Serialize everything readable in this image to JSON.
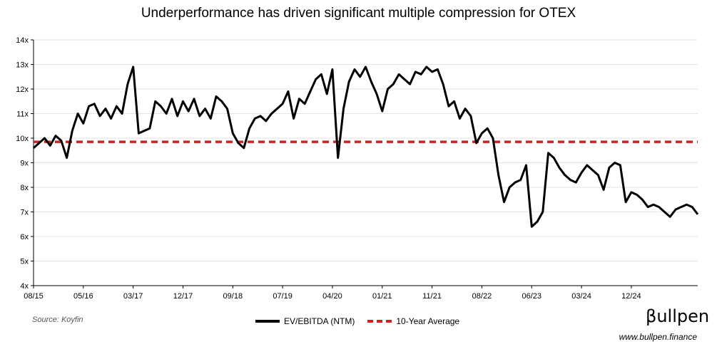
{
  "header": {
    "title": "Underperformance has driven significant multiple compression for OTEX"
  },
  "footer": {
    "source": "Source: Koyfin",
    "brand": "βullpen",
    "url": "www.bullpen.finance"
  },
  "legend": {
    "series_label": "EV/EBITDA (NTM)",
    "average_label": "10-Year Average"
  },
  "colors": {
    "series": "#000000",
    "average": "#d71f1f",
    "grid": "#e3e3e3"
  },
  "chart_data": {
    "type": "line",
    "title": "Underperformance has driven significant multiple compression for OTEX",
    "ylim": [
      4,
      14
    ],
    "y_ticks": [
      "4x",
      "5x",
      "6x",
      "7x",
      "8x",
      "9x",
      "10x",
      "11x",
      "12x",
      "13x",
      "14x"
    ],
    "x_ticks": [
      "08/15",
      "05/16",
      "03/17",
      "12/17",
      "09/18",
      "07/19",
      "04/20",
      "01/21",
      "11/21",
      "08/22",
      "06/23",
      "03/24",
      "12/24"
    ],
    "grid": "horizontal",
    "legend_position": "bottom",
    "x_range": [
      "2015-08",
      "2025-08"
    ],
    "series": [
      {
        "name": "EV/EBITDA (NTM)",
        "x": [
          "2015-08",
          "2015-09",
          "2015-10",
          "2015-11",
          "2015-12",
          "2016-01",
          "2016-02",
          "2016-03",
          "2016-04",
          "2016-05",
          "2016-06",
          "2016-07",
          "2016-08",
          "2016-09",
          "2016-10",
          "2016-11",
          "2016-12",
          "2017-01",
          "2017-02",
          "2017-03",
          "2017-04",
          "2017-05",
          "2017-06",
          "2017-07",
          "2017-08",
          "2017-09",
          "2017-10",
          "2017-11",
          "2017-12",
          "2018-01",
          "2018-02",
          "2018-03",
          "2018-04",
          "2018-05",
          "2018-06",
          "2018-07",
          "2018-08",
          "2018-09",
          "2018-10",
          "2018-11",
          "2018-12",
          "2019-01",
          "2019-02",
          "2019-03",
          "2019-04",
          "2019-05",
          "2019-06",
          "2019-07",
          "2019-08",
          "2019-09",
          "2019-10",
          "2019-11",
          "2019-12",
          "2020-01",
          "2020-02",
          "2020-03",
          "2020-04",
          "2020-05",
          "2020-06",
          "2020-07",
          "2020-08",
          "2020-09",
          "2020-10",
          "2020-11",
          "2020-12",
          "2021-01",
          "2021-02",
          "2021-03",
          "2021-04",
          "2021-05",
          "2021-06",
          "2021-07",
          "2021-08",
          "2021-09",
          "2021-10",
          "2021-11",
          "2021-12",
          "2022-01",
          "2022-02",
          "2022-03",
          "2022-04",
          "2022-05",
          "2022-06",
          "2022-07",
          "2022-08",
          "2022-09",
          "2022-10",
          "2022-11",
          "2022-12",
          "2023-01",
          "2023-02",
          "2023-03",
          "2023-04",
          "2023-05",
          "2023-06",
          "2023-07",
          "2023-08",
          "2023-09",
          "2023-10",
          "2023-11",
          "2023-12",
          "2024-01",
          "2024-02",
          "2024-03",
          "2024-04",
          "2024-05",
          "2024-06",
          "2024-07",
          "2024-08",
          "2024-09",
          "2024-10",
          "2024-11",
          "2024-12",
          "2025-01",
          "2025-02",
          "2025-03",
          "2025-04",
          "2025-05",
          "2025-06",
          "2025-07",
          "2025-08"
        ],
        "values": [
          9.6,
          9.8,
          10.0,
          9.7,
          10.1,
          9.9,
          9.2,
          10.3,
          11.0,
          10.6,
          11.3,
          11.4,
          10.9,
          11.2,
          10.8,
          11.3,
          11.0,
          12.2,
          12.9,
          10.2,
          10.3,
          10.4,
          11.5,
          11.3,
          11.0,
          11.6,
          10.9,
          11.5,
          11.1,
          11.6,
          10.9,
          11.2,
          10.8,
          11.7,
          11.5,
          11.2,
          10.2,
          9.8,
          9.6,
          10.4,
          10.8,
          10.9,
          10.7,
          11.0,
          11.2,
          11.4,
          11.9,
          10.8,
          11.6,
          11.4,
          11.9,
          12.4,
          12.6,
          11.8,
          12.8,
          9.2,
          11.2,
          12.3,
          12.8,
          12.5,
          12.9,
          12.3,
          11.8,
          11.1,
          12.0,
          12.2,
          12.6,
          12.4,
          12.2,
          12.7,
          12.6,
          12.9,
          12.7,
          12.8,
          12.2,
          11.3,
          11.5,
          10.8,
          11.2,
          10.9,
          9.8,
          10.2,
          10.4,
          10.0,
          8.5,
          7.4,
          8.0,
          8.2,
          8.3,
          8.9,
          6.4,
          6.6,
          7.0,
          9.4,
          9.2,
          8.8,
          8.5,
          8.3,
          8.2,
          8.6,
          8.9,
          8.7,
          8.5,
          7.9,
          8.8,
          9.0,
          8.9,
          7.4,
          7.8,
          7.7,
          7.5,
          7.2,
          7.3,
          7.2,
          7.0,
          6.8,
          7.1,
          7.2,
          7.3,
          7.2,
          6.9
        ]
      }
    ],
    "reference_lines": [
      {
        "name": "10-Year Average",
        "y": 9.85,
        "style": "dashed"
      }
    ]
  }
}
